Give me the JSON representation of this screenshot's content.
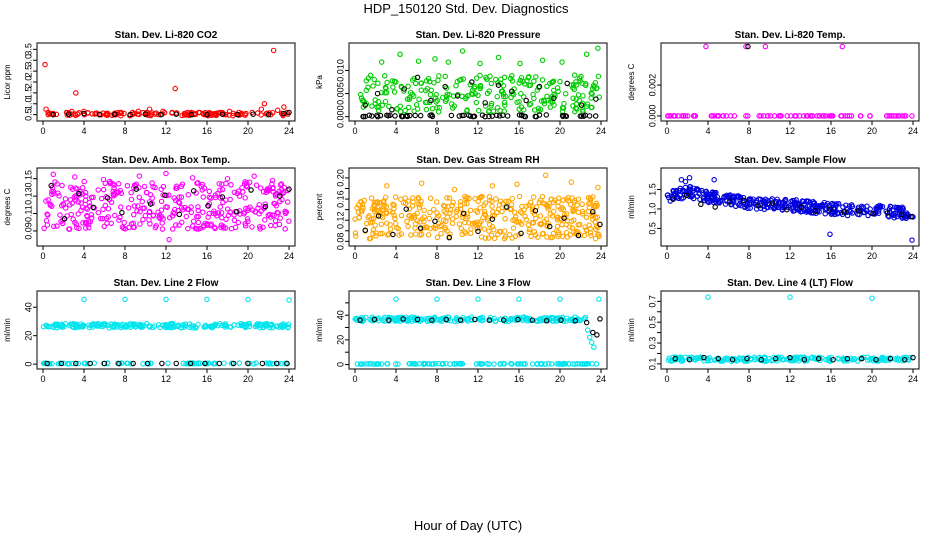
{
  "figure": {
    "title": "HDP_150120  Std. Dev. Diagnostics",
    "xlabel": "Hour of Day (UTC)"
  },
  "chart_data": [
    {
      "type": "scatter",
      "title": "Stan. Dev. Li-820 CO2",
      "ylabel": "Licor ppm",
      "xlim": [
        0,
        24
      ],
      "xticks": [
        0,
        4,
        8,
        12,
        16,
        20,
        24
      ],
      "ylim": [
        0.3,
        3.7
      ],
      "yticks": [
        0.5,
        1,
        1.5,
        2,
        2.5,
        3,
        3.5
      ],
      "ytick_labels": [
        "0.5",
        "1.0",
        "1.5",
        "2.0",
        "2.5",
        "3.0",
        "3.5"
      ],
      "series": [
        {
          "name": "primary",
          "color": "#ff0000",
          "x": [
            0.2,
            0.3,
            0.5,
            1.0,
            2.3,
            2.8,
            3.2,
            4.0,
            5.1,
            6.2,
            7.6,
            8.9,
            9.3,
            10.1,
            10.4,
            11.7,
            12.6,
            12.9,
            13.8,
            14.5,
            15.2,
            16.3,
            17.5,
            18.2,
            19.8,
            20.4,
            21.3,
            21.6,
            22.5,
            22.9,
            23.5,
            23.8
          ],
          "y": [
            2.8,
            0.75,
            0.6,
            0.55,
            0.6,
            0.65,
            1.5,
            0.65,
            0.55,
            0.55,
            0.6,
            0.55,
            0.65,
            0.6,
            0.75,
            0.65,
            0.6,
            1.7,
            0.55,
            0.6,
            0.6,
            0.55,
            0.6,
            0.65,
            0.55,
            0.6,
            0.75,
            1.0,
            3.45,
            0.7,
            0.85,
            0.6
          ]
        },
        {
          "name": "reference",
          "color": "#000000",
          "x": [
            1,
            2.5,
            4,
            5.5,
            7,
            8.5,
            10,
            11.5,
            13,
            14.5,
            16,
            17.5,
            19,
            20.5,
            22,
            23.5,
            24
          ],
          "y": [
            0.5,
            0.52,
            0.55,
            0.5,
            0.52,
            0.5,
            0.53,
            0.5,
            0.52,
            0.5,
            0.5,
            0.52,
            0.5,
            0.52,
            0.5,
            0.55,
            0.6
          ]
        }
      ],
      "dense": [
        {
          "color": "#ff0000",
          "x0": 0.3,
          "x1": 24,
          "y0": 0.45,
          "y1": 0.6,
          "n": 120
        }
      ]
    },
    {
      "type": "scatter",
      "title": "Stan. Dev. Li-820 Pressure",
      "ylabel": "kPa",
      "xlim": [
        0,
        24
      ],
      "xticks": [
        0,
        4,
        8,
        12,
        16,
        20,
        24
      ],
      "ylim": [
        -0.0005,
        0.0155
      ],
      "yticks": [
        0,
        0.005,
        0.01
      ],
      "ytick_labels": [
        "0.000",
        "0.005",
        "0.010"
      ],
      "series": [
        {
          "name": "primary",
          "color": "#00cc00",
          "x": [
            2.6,
            4.4,
            6.2,
            7.8,
            9.1,
            10.5,
            12.2,
            14.0,
            16.1,
            18.3,
            20.2,
            22.6,
            23.7
          ],
          "y": [
            0.0118,
            0.0135,
            0.012,
            0.0125,
            0.0118,
            0.0142,
            0.0115,
            0.0128,
            0.0115,
            0.0122,
            0.0118,
            0.0135,
            0.0148
          ]
        },
        {
          "name": "reference",
          "color": "#000000",
          "x": [
            1.0,
            2.2,
            3.6,
            4.8,
            6.1,
            7.4,
            8.8,
            10.0,
            11.4,
            12.7,
            14.0,
            15.3,
            16.7,
            18.0,
            19.4,
            20.7,
            22.1,
            23.5
          ],
          "y": [
            0.0025,
            0.005,
            0.0015,
            0.006,
            0.0085,
            0.0035,
            0.0065,
            0.0045,
            0.0075,
            0.003,
            0.0068,
            0.0055,
            0.0035,
            0.0065,
            0.004,
            0.0072,
            0.0025,
            0.0038
          ]
        }
      ],
      "dense": [
        {
          "color": "#00cc00",
          "x0": 0.5,
          "x1": 24,
          "y0": 0.001,
          "y1": 0.009,
          "n": 260
        },
        {
          "color": "#000000",
          "x0": 0.5,
          "x1": 24,
          "y0": 0.0,
          "y1": 0.0004,
          "n": 60
        }
      ]
    },
    {
      "type": "scatter",
      "title": "Stan. Dev. Li-820 Temp.",
      "ylabel": "degrees C",
      "xlim": [
        0,
        24
      ],
      "xticks": [
        0,
        4,
        8,
        12,
        16,
        20,
        24
      ],
      "ylim": [
        -0.0002,
        0.0046
      ],
      "yticks": [
        0,
        0.002
      ],
      "ytick_labels": [
        "0.000",
        "0.002"
      ],
      "series": [
        {
          "name": "primary",
          "color": "#ff00ff",
          "x": [
            3.8,
            7.7,
            9.6,
            17.1
          ],
          "y": [
            0.0045,
            0.0045,
            0.0045,
            0.0045
          ]
        },
        {
          "name": "reference",
          "color": "#000000",
          "x": [
            7.9
          ],
          "y": [
            0.0045
          ]
        }
      ],
      "dense": [
        {
          "color": "#ff00ff",
          "x0": 0.0,
          "x1": 24,
          "y0": 0.0,
          "y1": 0.0,
          "n": 90
        }
      ]
    },
    {
      "type": "scatter",
      "title": "Stan. Dev. Amb. Box Temp.",
      "ylabel": "degrees C",
      "xlim": [
        0,
        24
      ],
      "xticks": [
        0,
        4,
        8,
        12,
        16,
        20,
        24
      ],
      "ylim": [
        0.075,
        0.16
      ],
      "yticks": [
        0.09,
        0.11,
        0.13,
        0.15
      ],
      "ytick_labels": [
        "0.09",
        "0.11",
        "0.13",
        "0.15"
      ],
      "series": [
        {
          "name": "primary",
          "color": "#ff00ff",
          "x": [
            1.0,
            3.1,
            5.9,
            9.4,
            12.0,
            12.3,
            14.6,
            18.0,
            20.6,
            22.4
          ],
          "y": [
            0.155,
            0.152,
            0.149,
            0.153,
            0.156,
            0.08,
            0.151,
            0.15,
            0.153,
            0.148
          ]
        },
        {
          "name": "reference",
          "color": "#000000",
          "x": [
            0.8,
            2.1,
            3.5,
            4.9,
            6.3,
            7.7,
            9.1,
            10.5,
            11.9,
            13.3,
            14.7,
            16.1,
            17.5,
            18.9,
            20.3,
            21.7,
            23.1,
            24.0
          ],
          "y": [
            0.142,
            0.104,
            0.133,
            0.117,
            0.128,
            0.111,
            0.138,
            0.121,
            0.131,
            0.109,
            0.136,
            0.119,
            0.129,
            0.112,
            0.137,
            0.118,
            0.13,
            0.138
          ]
        }
      ],
      "dense": [
        {
          "color": "#ff00ff",
          "x0": 0.0,
          "x1": 24,
          "y0": 0.092,
          "y1": 0.147,
          "n": 380
        }
      ]
    },
    {
      "type": "scatter",
      "title": "Stan. Dev. Gas Stream RH",
      "ylabel": "percent",
      "xlim": [
        0,
        24
      ],
      "xticks": [
        0,
        4,
        8,
        12,
        16,
        20,
        24
      ],
      "ylim": [
        0.075,
        0.215
      ],
      "yticks": [
        0.08,
        0.1,
        0.12,
        0.14,
        0.16,
        0.18,
        0.2
      ],
      "ytick_labels": [
        "0.08",
        "",
        "0.12",
        "",
        "0.16",
        "",
        "0.20"
      ],
      "series": [
        {
          "name": "primary",
          "color": "#ffa500",
          "x": [
            3.1,
            6.5,
            9.7,
            13.4,
            15.8,
            18.6,
            21.1,
            23.7
          ],
          "y": [
            0.185,
            0.19,
            0.178,
            0.185,
            0.188,
            0.205,
            0.192,
            0.182
          ]
        },
        {
          "name": "reference",
          "color": "#000000",
          "x": [
            1.0,
            2.3,
            3.7,
            5.0,
            6.4,
            7.8,
            9.2,
            10.6,
            12.0,
            13.4,
            14.8,
            16.2,
            17.6,
            19.0,
            20.4,
            21.8,
            23.2,
            23.9
          ],
          "y": [
            0.101,
            0.128,
            0.093,
            0.141,
            0.105,
            0.118,
            0.087,
            0.133,
            0.099,
            0.122,
            0.145,
            0.095,
            0.138,
            0.108,
            0.124,
            0.091,
            0.136,
            0.112
          ]
        }
      ],
      "dense": [
        {
          "color": "#ffa500",
          "x0": 0.0,
          "x1": 24,
          "y0": 0.085,
          "y1": 0.165,
          "n": 420
        }
      ]
    },
    {
      "type": "scatter",
      "title": "Stan. Dev. Sample Flow",
      "ylabel": "ml/min",
      "xlim": [
        0,
        24
      ],
      "xticks": [
        0,
        4,
        8,
        12,
        16,
        20,
        24
      ],
      "ylim": [
        0.1,
        2.0
      ],
      "yticks": [
        0.5,
        1.0,
        1.5
      ],
      "ytick_labels": [
        "0.5",
        "1.0",
        "1.5"
      ],
      "series": [
        {
          "name": "primary",
          "color": "#0000dd",
          "x": [
            1.4,
            1.8,
            2.2,
            4.6,
            15.9,
            23.9
          ],
          "y": [
            1.75,
            1.7,
            1.8,
            1.75,
            0.35,
            0.2
          ]
        },
        {
          "name": "reference",
          "color": "#000000",
          "x": [
            0.6,
            1.9,
            3.3,
            4.7,
            6.1,
            7.5,
            8.9,
            10.3,
            11.7,
            13.1,
            14.5,
            15.9,
            17.3,
            18.7,
            20.1,
            21.5,
            22.9,
            23.8
          ],
          "y": [
            1.25,
            1.35,
            1.12,
            1.05,
            1.18,
            1.22,
            1.08,
            1.15,
            0.98,
            1.05,
            0.95,
            1.0,
            0.92,
            0.95,
            0.88,
            0.9,
            0.85,
            0.8
          ]
        }
      ],
      "trend": {
        "color": "#0000dd",
        "x": [
          0,
          2,
          4,
          8,
          12,
          16,
          20,
          24
        ],
        "y": [
          1.3,
          1.45,
          1.3,
          1.15,
          1.1,
          1.0,
          0.95,
          0.9
        ],
        "spread": 0.15,
        "n": 380
      }
    },
    {
      "type": "scatter",
      "title": "Stan. Dev. Line 2 Flow",
      "ylabel": "ml/min",
      "xlim": [
        0,
        24
      ],
      "xticks": [
        0,
        4,
        8,
        12,
        16,
        20,
        24
      ],
      "ylim": [
        -2,
        50
      ],
      "yticks": [
        0,
        20,
        40
      ],
      "ytick_labels": [
        "0",
        "20",
        "40"
      ],
      "series": [
        {
          "name": "primary",
          "color": "#00e5ee",
          "x": [
            4.0,
            8.0,
            12.0,
            16.0,
            20.0,
            24.0
          ],
          "y": [
            45.5,
            45.5,
            45.5,
            45.5,
            45.5,
            45.0
          ]
        },
        {
          "name": "reference",
          "color": "#000000",
          "x": [
            0.4,
            1.8,
            3.2,
            4.6,
            6.0,
            7.4,
            8.8,
            10.2,
            11.6,
            13.0,
            14.4,
            15.8,
            17.2,
            18.6,
            20.0,
            21.4,
            22.8,
            23.8
          ],
          "y": [
            0.5,
            0.5,
            0.5,
            0.5,
            0.5,
            0.5,
            0.5,
            0.5,
            0.5,
            0.5,
            0.5,
            0.5,
            0.5,
            0.5,
            0.5,
            0.5,
            0.5,
            0.5
          ]
        }
      ],
      "dense": [
        {
          "color": "#00e5ee",
          "x0": 0.0,
          "x1": 24,
          "y0": 25.5,
          "y1": 28.5,
          "n": 220
        },
        {
          "color": "#00e5ee",
          "x0": 0.0,
          "x1": 24,
          "y0": 0.2,
          "y1": 0.8,
          "n": 80
        }
      ]
    },
    {
      "type": "scatter",
      "title": "Stan. Dev. Line 3 Flow",
      "ylabel": "ml/min",
      "xlim": [
        0,
        24
      ],
      "xticks": [
        0,
        4,
        8,
        12,
        16,
        20,
        24
      ],
      "ylim": [
        -2,
        58
      ],
      "yticks": [
        0,
        10,
        20,
        30,
        40,
        50
      ],
      "ytick_labels": [
        "0",
        "",
        "20",
        "",
        "40",
        ""
      ],
      "series": [
        {
          "name": "primary",
          "color": "#00e5ee",
          "x": [
            4.0,
            8.0,
            12.0,
            16.0,
            20.0,
            23.8,
            22.7,
            22.9,
            23.1,
            23.3
          ],
          "y": [
            53,
            53,
            53,
            53,
            53,
            53,
            28,
            22,
            18,
            14
          ]
        },
        {
          "name": "reference",
          "color": "#000000",
          "x": [
            0.5,
            1.9,
            3.3,
            4.7,
            6.1,
            7.5,
            8.9,
            10.3,
            11.7,
            13.1,
            14.5,
            15.9,
            17.3,
            18.7,
            20.1,
            21.5,
            22.6,
            23.2,
            23.6,
            23.9
          ],
          "y": [
            36,
            36.5,
            36,
            37,
            36.5,
            36,
            36.5,
            36,
            36.5,
            36,
            36,
            36.5,
            36,
            35.5,
            36,
            35.5,
            34,
            26,
            24,
            37
          ]
        }
      ],
      "dense": [
        {
          "color": "#00e5ee",
          "x0": 0.0,
          "x1": 22.5,
          "y0": 35,
          "y1": 38.5,
          "n": 210
        },
        {
          "color": "#00e5ee",
          "x0": 0.0,
          "x1": 23.6,
          "y0": 0.3,
          "y1": 0.8,
          "n": 110
        }
      ]
    },
    {
      "type": "scatter",
      "title": "Stan. Dev. Line 4 (LT) Flow",
      "ylabel": "ml/min",
      "xlim": [
        0,
        24
      ],
      "xticks": [
        0,
        4,
        8,
        12,
        16,
        20,
        24
      ],
      "ylim": [
        0.07,
        0.78
      ],
      "yticks": [
        0.1,
        0.2,
        0.3,
        0.4,
        0.5,
        0.6,
        0.7
      ],
      "ytick_labels": [
        "0.1",
        "",
        "0.3",
        "",
        "0.5",
        "",
        "0.7"
      ],
      "series": [
        {
          "name": "primary",
          "color": "#00e5ee",
          "x": [
            4.0,
            12.0,
            20.0
          ],
          "y": [
            0.74,
            0.74,
            0.73
          ]
        },
        {
          "name": "reference",
          "color": "#000000",
          "x": [
            0.8,
            2.2,
            3.6,
            5.0,
            6.4,
            7.8,
            9.2,
            10.6,
            12.0,
            13.4,
            14.8,
            16.2,
            17.6,
            19.0,
            20.4,
            21.8,
            23.2,
            24.0
          ],
          "y": [
            0.15,
            0.14,
            0.16,
            0.15,
            0.14,
            0.15,
            0.14,
            0.15,
            0.16,
            0.14,
            0.15,
            0.14,
            0.15,
            0.15,
            0.14,
            0.15,
            0.14,
            0.16
          ]
        }
      ],
      "dense": [
        {
          "color": "#00e5ee",
          "x0": 0.0,
          "x1": 24,
          "y0": 0.125,
          "y1": 0.165,
          "n": 200
        }
      ]
    }
  ]
}
